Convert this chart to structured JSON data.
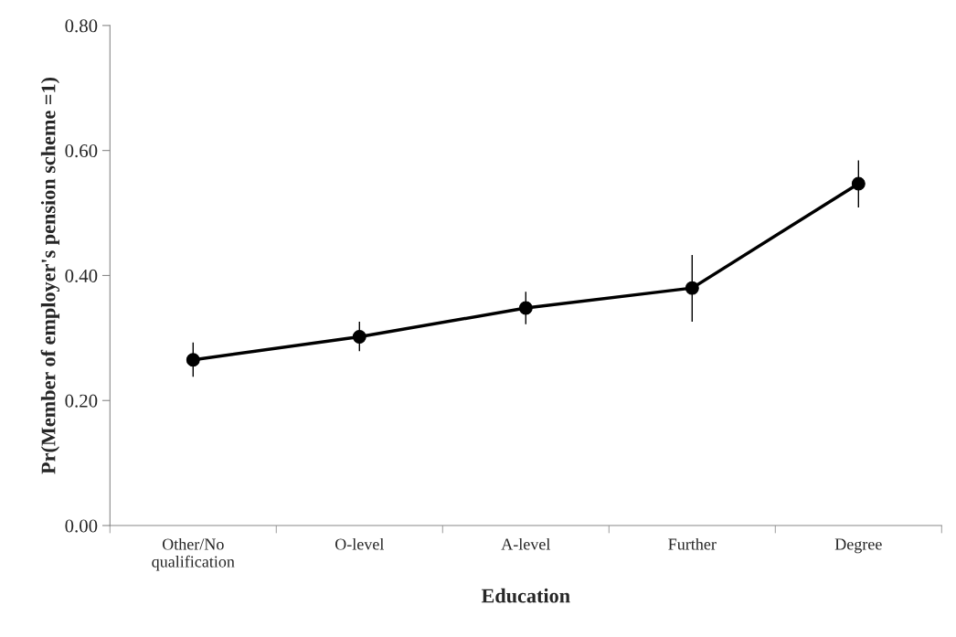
{
  "chart_data": {
    "type": "line",
    "xlabel": "Education",
    "ylabel": "Pr(Member of employer's pension scheme =1)",
    "categories": [
      "Other/No\nqualification",
      "O-level",
      "A-level",
      "Further",
      "Degree"
    ],
    "series": [
      {
        "color": "#000000",
        "values": [
          0.265,
          0.302,
          0.348,
          0.38,
          0.547
        ],
        "errors": [
          [
            0.238,
            0.293
          ],
          [
            0.279,
            0.326
          ],
          [
            0.322,
            0.374
          ],
          [
            0.326,
            0.433
          ],
          [
            0.509,
            0.584
          ]
        ]
      }
    ],
    "ylim": [
      0,
      0.8
    ],
    "yticks": [
      {
        "value": 0,
        "label": "0.00"
      },
      {
        "value": 0.2,
        "label": "0.20"
      },
      {
        "value": 0.4,
        "label": "0.40"
      },
      {
        "value": 0.6,
        "label": "0.60"
      },
      {
        "value": 0.8,
        "label": "0.80"
      }
    ],
    "marker": "circle",
    "line_style": "solid",
    "grid": false,
    "legend": false
  }
}
